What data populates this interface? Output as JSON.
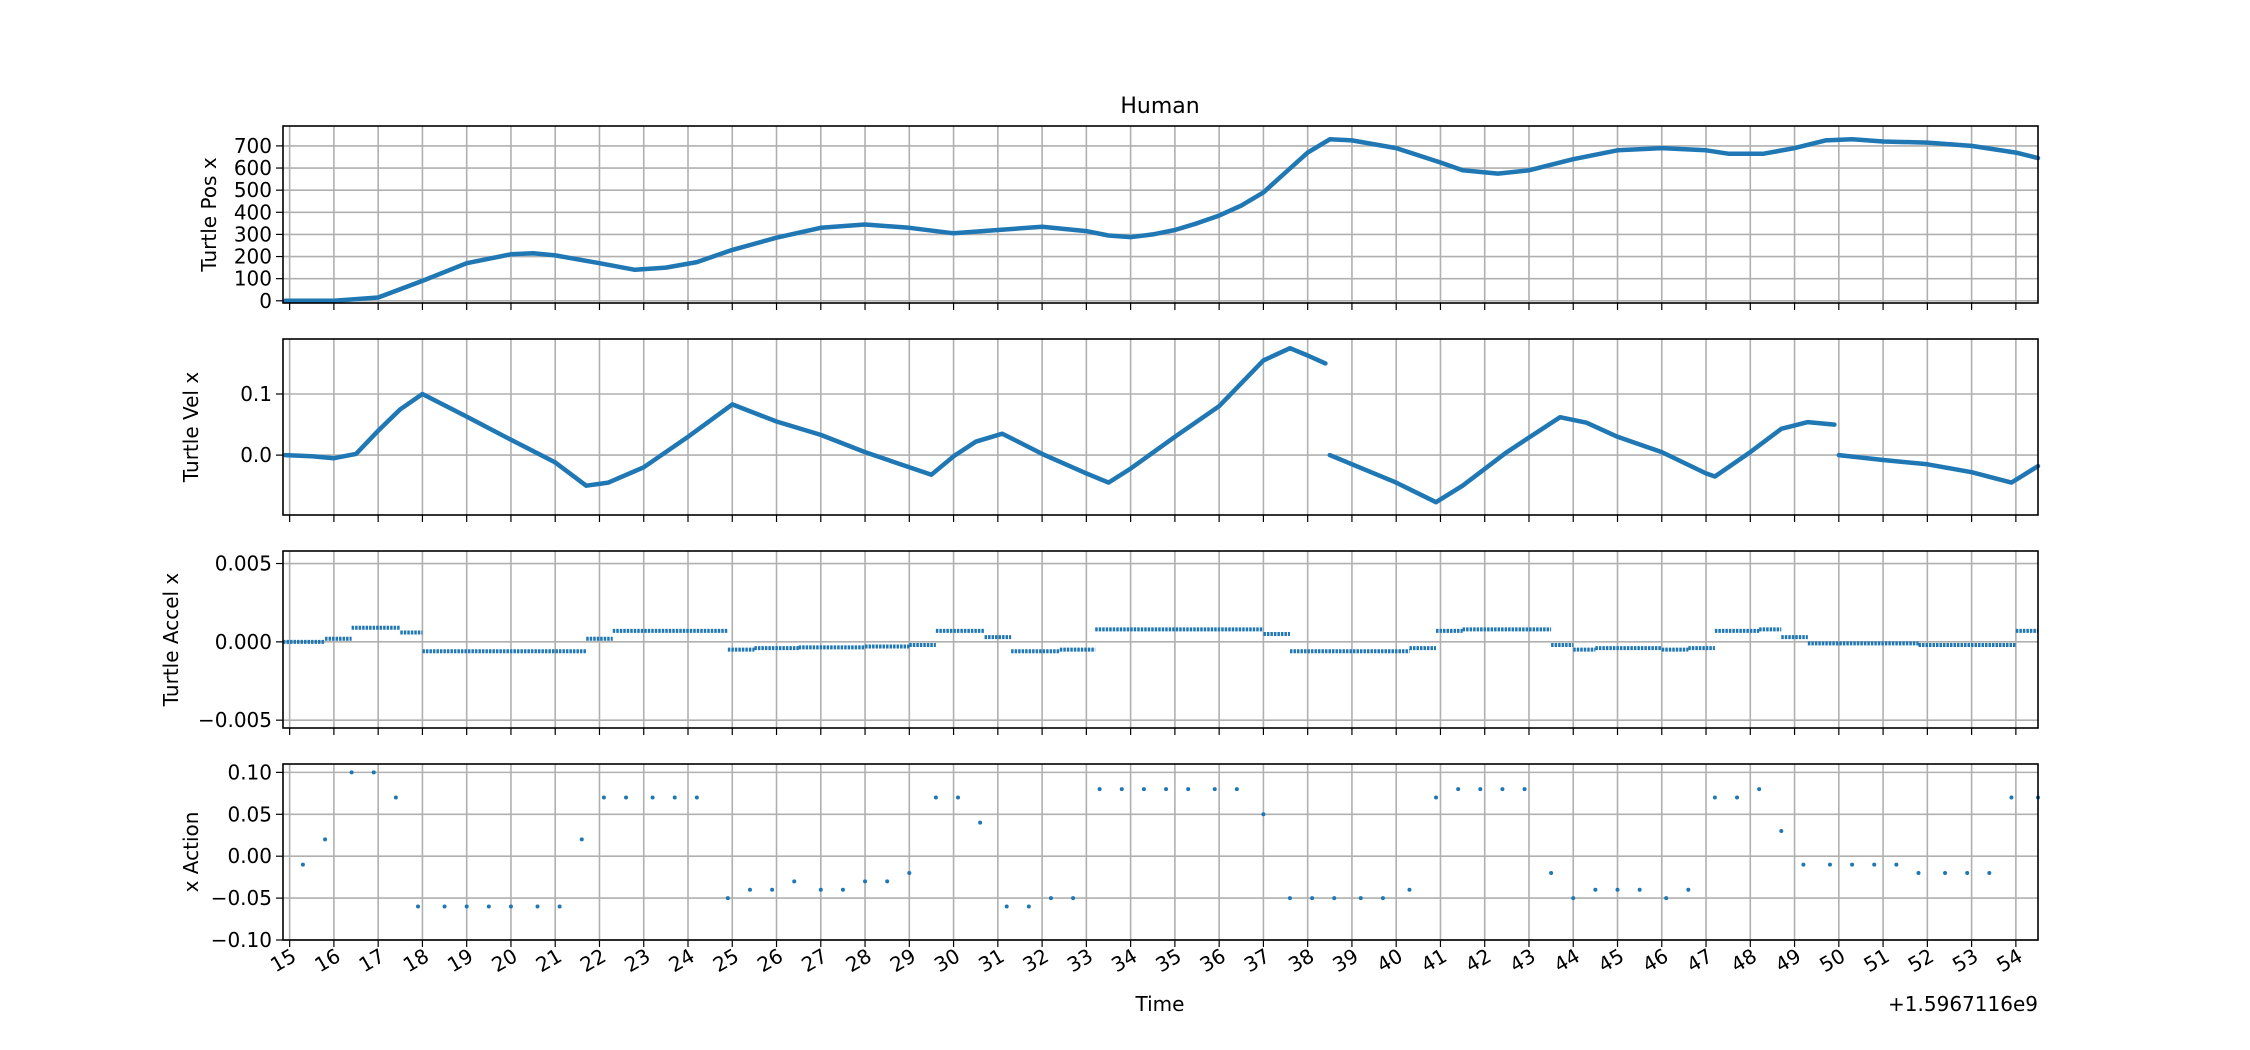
{
  "chart_data": {
    "type": "scatter",
    "title": "Human",
    "xlabel": "Time",
    "x_offset_label": "+1.5967116e9",
    "xlim": [
      14.85,
      54.5
    ],
    "x_ticks": [
      15,
      16,
      17,
      18,
      19,
      20,
      21,
      22,
      23,
      24,
      25,
      26,
      27,
      28,
      29,
      30,
      31,
      32,
      33,
      34,
      35,
      36,
      37,
      38,
      39,
      40,
      41,
      42,
      43,
      44,
      45,
      46,
      47,
      48,
      49,
      50,
      51,
      52,
      53,
      54
    ],
    "grid": true,
    "color": "#1f77b4",
    "panels": [
      {
        "ylabel": "Turtle Pos x",
        "ylim": [
          -10,
          790
        ],
        "yticks": [
          0,
          100,
          200,
          300,
          400,
          500,
          600,
          700
        ],
        "ytick_labels": [
          "0",
          "100",
          "200",
          "300",
          "400",
          "500",
          "600",
          "700"
        ],
        "style": "dense",
        "points": [
          [
            14.9,
            0
          ],
          [
            16,
            0
          ],
          [
            17,
            15
          ],
          [
            18,
            90
          ],
          [
            19,
            170
          ],
          [
            20,
            210
          ],
          [
            20.5,
            215
          ],
          [
            21,
            205
          ],
          [
            22,
            170
          ],
          [
            22.8,
            140
          ],
          [
            23.5,
            150
          ],
          [
            24.2,
            175
          ],
          [
            25,
            230
          ],
          [
            26,
            285
          ],
          [
            27,
            330
          ],
          [
            28,
            345
          ],
          [
            29,
            330
          ],
          [
            30,
            305
          ],
          [
            31,
            320
          ],
          [
            32,
            335
          ],
          [
            33,
            315
          ],
          [
            33.5,
            295
          ],
          [
            34,
            288
          ],
          [
            34.5,
            300
          ],
          [
            35,
            320
          ],
          [
            35.5,
            350
          ],
          [
            36,
            385
          ],
          [
            36.5,
            430
          ],
          [
            37,
            490
          ],
          [
            37.5,
            580
          ],
          [
            38,
            670
          ],
          [
            38.5,
            730
          ],
          [
            39,
            725
          ],
          [
            40,
            690
          ],
          [
            41,
            625
          ],
          [
            41.5,
            590
          ],
          [
            42.3,
            575
          ],
          [
            43,
            590
          ],
          [
            44,
            640
          ],
          [
            45,
            680
          ],
          [
            46,
            690
          ],
          [
            47,
            680
          ],
          [
            47.5,
            665
          ],
          [
            48.3,
            665
          ],
          [
            49,
            690
          ],
          [
            49.7,
            725
          ],
          [
            50.3,
            730
          ],
          [
            51,
            720
          ],
          [
            52,
            715
          ],
          [
            53,
            700
          ],
          [
            54,
            670
          ],
          [
            54.5,
            645
          ]
        ]
      },
      {
        "ylabel": "Turtle Vel x",
        "ylim": [
          -0.098,
          0.19
        ],
        "yticks": [
          0,
          0.1
        ],
        "ytick_labels": [
          "0.0",
          "0.1"
        ],
        "style": "dense",
        "points": [
          [
            14.9,
            0
          ],
          [
            15.5,
            -0.002
          ],
          [
            16,
            -0.005
          ],
          [
            16.5,
            0.002
          ],
          [
            17,
            0.04
          ],
          [
            17.5,
            0.075
          ],
          [
            18,
            0.1
          ],
          [
            19,
            0.063
          ],
          [
            20,
            0.025
          ],
          [
            21,
            -0.012
          ],
          [
            21.7,
            -0.05
          ],
          [
            22.2,
            -0.045
          ],
          [
            23,
            -0.02
          ],
          [
            24,
            0.03
          ],
          [
            25,
            0.083
          ],
          [
            26,
            0.055
          ],
          [
            27,
            0.033
          ],
          [
            28,
            0.005
          ],
          [
            29,
            -0.02
          ],
          [
            29.5,
            -0.032
          ],
          [
            30,
            -0.002
          ],
          [
            30.5,
            0.022
          ],
          [
            31.1,
            0.035
          ],
          [
            32,
            0.002
          ],
          [
            33,
            -0.03
          ],
          [
            33.5,
            -0.045
          ],
          [
            34,
            -0.022
          ],
          [
            35,
            0.03
          ],
          [
            36,
            0.08
          ],
          [
            37,
            0.155
          ],
          [
            37.6,
            0.175
          ],
          [
            38,
            0.163
          ],
          [
            38.4,
            0.15
          ],
          [
            null,
            null
          ],
          [
            38.5,
            0
          ],
          [
            39.5,
            -0.03
          ],
          [
            40,
            -0.045
          ],
          [
            40.9,
            -0.077
          ],
          [
            41.5,
            -0.05
          ],
          [
            42.5,
            0.005
          ],
          [
            43.7,
            0.062
          ],
          [
            44.3,
            0.053
          ],
          [
            45,
            0.03
          ],
          [
            46,
            0.005
          ],
          [
            47,
            -0.03
          ],
          [
            47.2,
            -0.035
          ],
          [
            48,
            0.005
          ],
          [
            48.7,
            0.043
          ],
          [
            49.3,
            0.054
          ],
          [
            49.9,
            0.05
          ],
          [
            null,
            null
          ],
          [
            50,
            0
          ],
          [
            51,
            -0.008
          ],
          [
            52,
            -0.015
          ],
          [
            53,
            -0.028
          ],
          [
            53.9,
            -0.045
          ],
          [
            54.5,
            -0.018
          ]
        ]
      },
      {
        "ylabel": "Turtle Accel x",
        "ylim": [
          -0.0055,
          0.0058
        ],
        "yticks": [
          -0.005,
          0,
          0.005
        ],
        "ytick_labels": [
          "−0.005",
          "0.000",
          "0.005"
        ],
        "style": "steps",
        "segments": [
          [
            14.85,
            15.8,
            0
          ],
          [
            15.8,
            16.4,
            0.0002
          ],
          [
            16.4,
            17.5,
            0.0009
          ],
          [
            17.5,
            18.0,
            0.0006
          ],
          [
            18.0,
            21.7,
            -0.0006
          ],
          [
            21.7,
            22.3,
            0.0002
          ],
          [
            22.3,
            24.9,
            0.0007
          ],
          [
            24.9,
            25.5,
            -0.0005
          ],
          [
            25.5,
            26.5,
            -0.0004
          ],
          [
            26.5,
            28.0,
            -0.00035
          ],
          [
            28.0,
            29.0,
            -0.0003
          ],
          [
            29.0,
            29.6,
            -0.0002
          ],
          [
            29.6,
            30.7,
            0.0007
          ],
          [
            30.7,
            31.3,
            0.0003
          ],
          [
            31.3,
            32.4,
            -0.0006
          ],
          [
            32.4,
            33.2,
            -0.0005
          ],
          [
            33.2,
            37.0,
            0.0008
          ],
          [
            37.0,
            37.6,
            0.0005
          ],
          [
            37.6,
            40.3,
            -0.0006
          ],
          [
            40.3,
            40.9,
            -0.0004
          ],
          [
            40.9,
            41.5,
            0.0007
          ],
          [
            41.5,
            43.5,
            0.0008
          ],
          [
            43.5,
            44.0,
            -0.0002
          ],
          [
            44.0,
            44.5,
            -0.0005
          ],
          [
            44.5,
            46.0,
            -0.0004
          ],
          [
            46.0,
            46.6,
            -0.0005
          ],
          [
            46.6,
            47.2,
            -0.0004
          ],
          [
            47.2,
            48.2,
            0.0007
          ],
          [
            48.2,
            48.7,
            0.0008
          ],
          [
            48.7,
            49.3,
            0.0003
          ],
          [
            49.3,
            51.8,
            -0.0001
          ],
          [
            51.8,
            54.0,
            -0.0002
          ],
          [
            54.0,
            54.5,
            0.0007
          ]
        ]
      },
      {
        "ylabel": "x Action",
        "ylim": [
          -0.1,
          0.11
        ],
        "yticks": [
          -0.1,
          -0.05,
          0,
          0.05,
          0.1
        ],
        "ytick_labels": [
          "−0.10",
          "−0.05",
          "0.00",
          "0.05",
          "0.10"
        ],
        "style": "sparse",
        "points": [
          [
            15.3,
            -0.01
          ],
          [
            15.8,
            0.02
          ],
          [
            16.4,
            0.1
          ],
          [
            16.9,
            0.1
          ],
          [
            17.4,
            0.07
          ],
          [
            17.9,
            -0.06
          ],
          [
            18.5,
            -0.06
          ],
          [
            19,
            -0.06
          ],
          [
            19.5,
            -0.06
          ],
          [
            20,
            -0.06
          ],
          [
            20.6,
            -0.06
          ],
          [
            21.1,
            -0.06
          ],
          [
            21.6,
            0.02
          ],
          [
            22.1,
            0.07
          ],
          [
            22.6,
            0.07
          ],
          [
            23.2,
            0.07
          ],
          [
            23.7,
            0.07
          ],
          [
            24.2,
            0.07
          ],
          [
            24.9,
            -0.05
          ],
          [
            25.4,
            -0.04
          ],
          [
            25.9,
            -0.04
          ],
          [
            26.4,
            -0.03
          ],
          [
            27,
            -0.04
          ],
          [
            27.5,
            -0.04
          ],
          [
            28,
            -0.03
          ],
          [
            28.5,
            -0.03
          ],
          [
            29,
            -0.02
          ],
          [
            29.6,
            0.07
          ],
          [
            30.1,
            0.07
          ],
          [
            30.6,
            0.04
          ],
          [
            31.2,
            -0.06
          ],
          [
            31.7,
            -0.06
          ],
          [
            32.2,
            -0.05
          ],
          [
            32.7,
            -0.05
          ],
          [
            33.3,
            0.08
          ],
          [
            33.8,
            0.08
          ],
          [
            34.3,
            0.08
          ],
          [
            34.8,
            0.08
          ],
          [
            35.3,
            0.08
          ],
          [
            35.9,
            0.08
          ],
          [
            36.4,
            0.08
          ],
          [
            37,
            0.05
          ],
          [
            37.6,
            -0.05
          ],
          [
            38.1,
            -0.05
          ],
          [
            38.6,
            -0.05
          ],
          [
            39.2,
            -0.05
          ],
          [
            39.7,
            -0.05
          ],
          [
            40.3,
            -0.04
          ],
          [
            40.9,
            0.07
          ],
          [
            41.4,
            0.08
          ],
          [
            41.9,
            0.08
          ],
          [
            42.4,
            0.08
          ],
          [
            42.9,
            0.08
          ],
          [
            43.5,
            -0.02
          ],
          [
            44,
            -0.05
          ],
          [
            44.5,
            -0.04
          ],
          [
            45,
            -0.04
          ],
          [
            45.5,
            -0.04
          ],
          [
            46.1,
            -0.05
          ],
          [
            46.6,
            -0.04
          ],
          [
            47.2,
            0.07
          ],
          [
            47.7,
            0.07
          ],
          [
            48.2,
            0.08
          ],
          [
            48.7,
            0.03
          ],
          [
            49.2,
            -0.01
          ],
          [
            49.8,
            -0.01
          ],
          [
            50.3,
            -0.01
          ],
          [
            50.8,
            -0.01
          ],
          [
            51.3,
            -0.01
          ],
          [
            51.8,
            -0.02
          ],
          [
            52.4,
            -0.02
          ],
          [
            52.9,
            -0.02
          ],
          [
            53.4,
            -0.02
          ],
          [
            53.9,
            0.07
          ],
          [
            54.5,
            0.07
          ]
        ]
      }
    ]
  }
}
